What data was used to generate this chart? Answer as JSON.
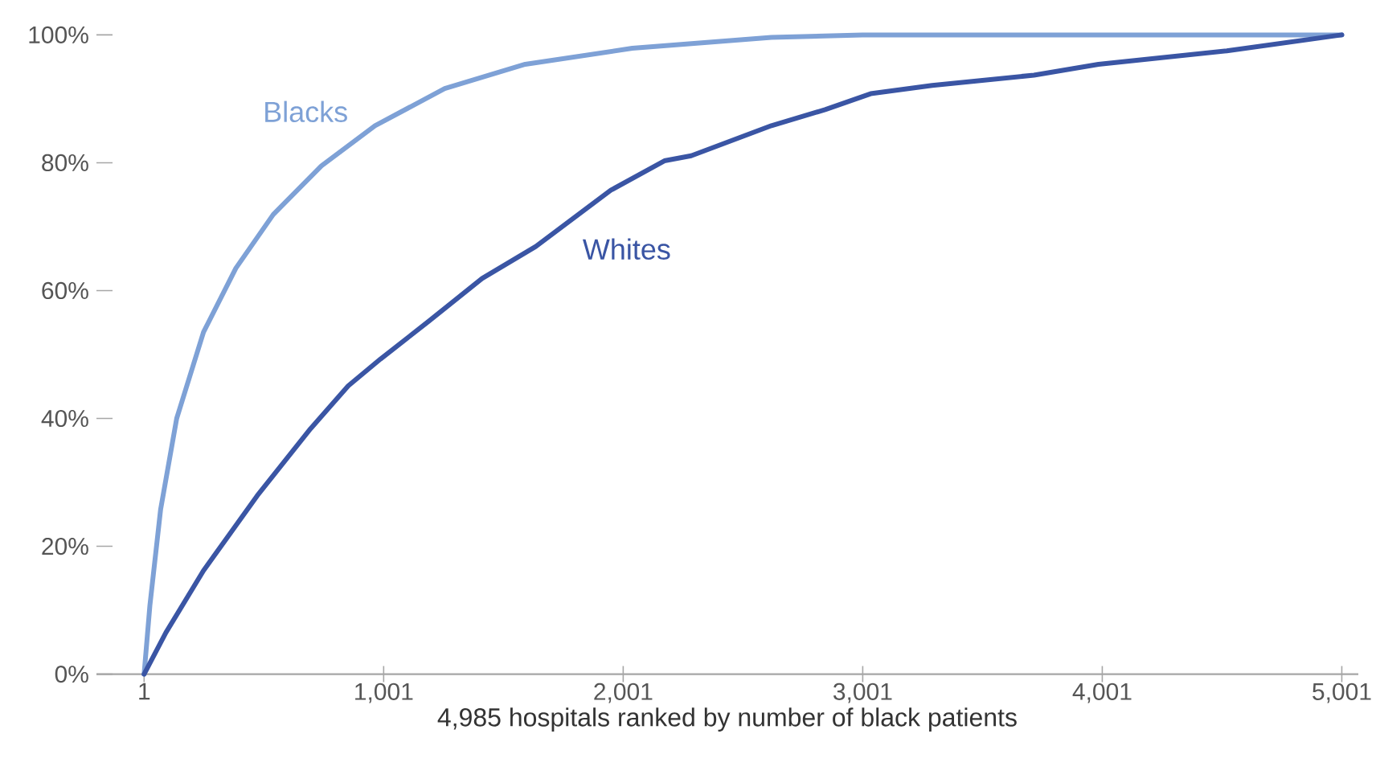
{
  "chart_data": {
    "type": "line",
    "xlabel": "4,985 hospitals ranked by number of black patients",
    "xlim": [
      -198,
      5070
    ],
    "ylim": [
      0,
      100
    ],
    "xticks": [
      {
        "value": 1,
        "label": "1"
      },
      {
        "value": 1001,
        "label": "1,001"
      },
      {
        "value": 2001,
        "label": "2,001"
      },
      {
        "value": 3001,
        "label": "3,001"
      },
      {
        "value": 4001,
        "label": "4,001"
      },
      {
        "value": 5001,
        "label": "5,001"
      }
    ],
    "yticks": [
      {
        "value": 0,
        "label": "0%"
      },
      {
        "value": 20,
        "label": "20%"
      },
      {
        "value": 40,
        "label": "40%"
      },
      {
        "value": 60,
        "label": "60%"
      },
      {
        "value": 80,
        "label": "80%"
      },
      {
        "value": 100,
        "label": "100%"
      }
    ],
    "grid": false,
    "marker": "none",
    "line_style": "solid",
    "series": [
      {
        "name": "Blacks",
        "color": "#7ea1d6",
        "x": [
          1,
          25,
          70,
          137,
          249,
          384,
          540,
          741,
          965,
          1256,
          1592,
          2039,
          2620,
          3000,
          5001
        ],
        "values": [
          0,
          10.7,
          25.8,
          40,
          53.5,
          63.5,
          71.9,
          79.5,
          85.8,
          91.6,
          95.4,
          97.9,
          99.6,
          100,
          100
        ]
      },
      {
        "name": "Whites",
        "color": "#3a55a4",
        "x": [
          1,
          92,
          249,
          473,
          696,
          853,
          988,
          1189,
          1412,
          1636,
          1949,
          2173,
          2285,
          2620,
          2844,
          3034,
          3291,
          3716,
          3985,
          4521,
          5001
        ],
        "values": [
          0,
          6.5,
          16.2,
          27.9,
          38.4,
          45.1,
          49.3,
          55.2,
          61.9,
          66.9,
          75.7,
          80.3,
          81.1,
          85.8,
          88.3,
          90.8,
          92.1,
          93.7,
          95.4,
          97.5,
          100
        ]
      }
    ]
  }
}
